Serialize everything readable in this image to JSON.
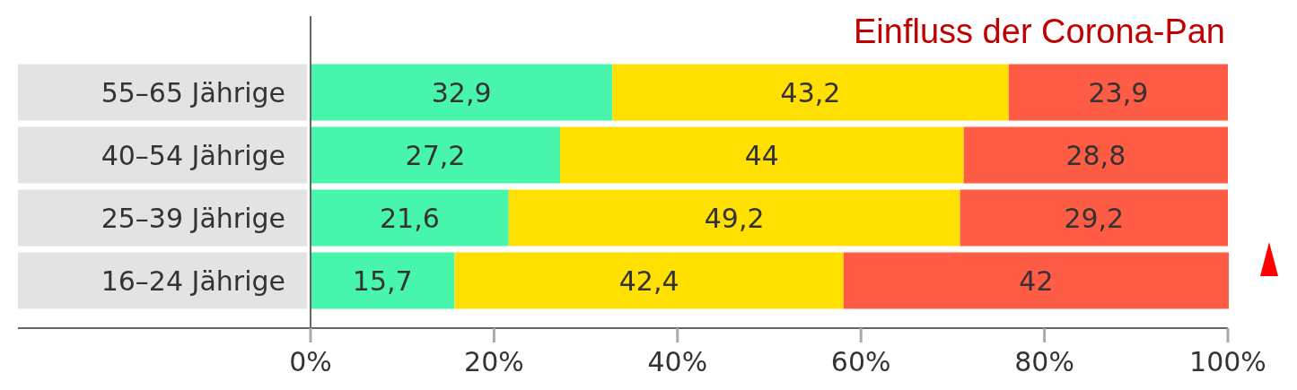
{
  "chart_data": {
    "type": "bar",
    "orientation": "horizontal",
    "stacked": true,
    "categories": [
      "55–65 Jährige",
      "40–54 Jährige",
      "25–39 Jährige",
      "16–24 Jährige"
    ],
    "series": [
      {
        "color": "#48f5ad",
        "values": [
          32.9,
          27.2,
          21.6,
          15.7
        ],
        "value_labels": [
          "32,9",
          "27,2",
          "21,6",
          "15,7"
        ]
      },
      {
        "color": "#ffe000",
        "values": [
          43.2,
          44,
          49.2,
          42.4
        ],
        "value_labels": [
          "43,2",
          "44",
          "49,2",
          "42,4"
        ]
      },
      {
        "color": "#ff5c45",
        "values": [
          23.9,
          28.8,
          29.2,
          42
        ],
        "value_labels": [
          "23,9",
          "28,8",
          "29,2",
          "42"
        ]
      }
    ],
    "xlim": [
      0,
      100
    ],
    "xticks": [
      {
        "value": 0,
        "label": "0%"
      },
      {
        "value": 20,
        "label": "20%"
      },
      {
        "value": 40,
        "label": "40%"
      },
      {
        "value": 60,
        "label": "60%"
      },
      {
        "value": 80,
        "label": "80%"
      },
      {
        "value": 100,
        "label": "100%"
      }
    ],
    "annotations": [
      "Einfluss der Corona-Pan"
    ]
  }
}
